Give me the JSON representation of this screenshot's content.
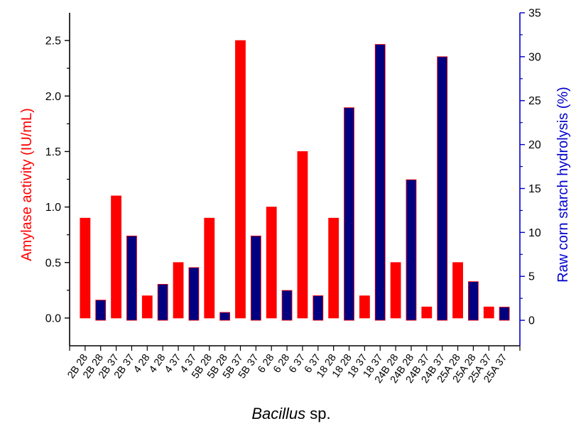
{
  "chart_data": {
    "type": "bar",
    "xlabel_italic": "Bacillus",
    "xlabel_rest": " sp.",
    "ylabel_left": "Amylase activity (IU/mL)",
    "ylabel_right": "Raw corn starch hydrolysis (%)",
    "ylim_left": [
      -0.25,
      2.75
    ],
    "ylim_right": [
      -2.9,
      35
    ],
    "yticks_left": [
      "0.0",
      "0.5",
      "1.0",
      "1.5",
      "2.0",
      "2.5"
    ],
    "yticks_right": [
      "0",
      "5",
      "10",
      "15",
      "20",
      "25",
      "30",
      "35"
    ],
    "categories": [
      "2B 28",
      "2B 28",
      "2B 37",
      "2B 37",
      "4 28",
      "4 28",
      "4 37",
      "4 37",
      "5B 28",
      "5B 28",
      "5B 37",
      "5B 37",
      "6 28",
      "6 28",
      "6 37",
      "6 37",
      "18 28",
      "18 28",
      "18 37",
      "18 37",
      "24B 28",
      "24B 28",
      "24B 37",
      "24B 37",
      "25A 28",
      "25A 28",
      "25A 37",
      "25A 37"
    ],
    "series": [
      {
        "axis": "left",
        "color": "#ff0000",
        "values": [
          0.9,
          null,
          1.1,
          null,
          0.2,
          null,
          0.5,
          null,
          0.9,
          null,
          2.5,
          null,
          1.0,
          null,
          1.5,
          null,
          0.9,
          null,
          0.2,
          null,
          0.5,
          null,
          0.1,
          null,
          0.5,
          null,
          0.1,
          null
        ]
      },
      {
        "axis": "right",
        "color": "#000080",
        "values": [
          null,
          2.3,
          null,
          9.6,
          null,
          4.1,
          null,
          6.0,
          null,
          0.9,
          null,
          9.6,
          null,
          3.4,
          null,
          2.8,
          null,
          24.2,
          null,
          31.4,
          null,
          16.0,
          null,
          30.0,
          null,
          4.4,
          null,
          1.5
        ]
      }
    ]
  },
  "colors": {
    "left_axis": "#ff0000",
    "right_axis": "#0000cc",
    "frame": "#000000"
  }
}
